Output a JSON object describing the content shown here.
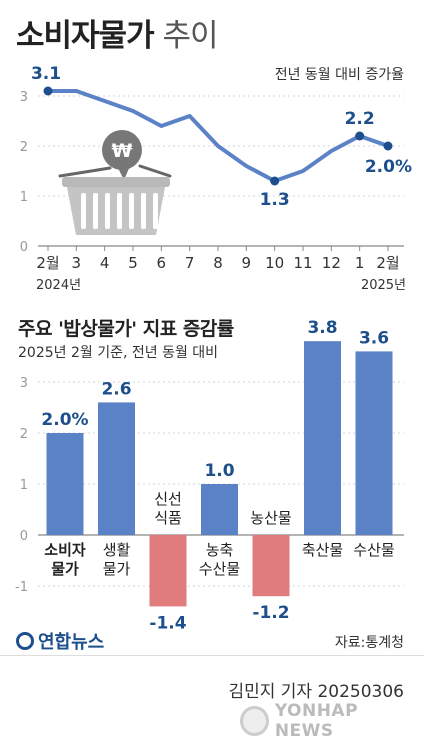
{
  "header": {
    "title_bold": "소비자물가",
    "title_light": "추이"
  },
  "chart_data": [
    {
      "type": "line",
      "subtitle": "전년 동월 대비 증가율",
      "x": [
        "2월",
        "3",
        "4",
        "5",
        "6",
        "7",
        "8",
        "9",
        "10",
        "11",
        "12",
        "1",
        "2월"
      ],
      "year_labels": [
        "2024년",
        "2025년"
      ],
      "values": [
        3.1,
        3.1,
        2.9,
        2.7,
        2.4,
        2.6,
        2.0,
        1.6,
        1.3,
        1.5,
        1.9,
        2.2,
        2.0
      ],
      "data_labels": [
        {
          "index": 0,
          "text": "3.1"
        },
        {
          "index": 8,
          "text": "1.3"
        },
        {
          "index": 11,
          "text": "2.2"
        },
        {
          "index": 12,
          "text": "2.0%"
        }
      ],
      "yticks": [
        0,
        1,
        2,
        3
      ],
      "ylim": [
        0,
        3.4
      ],
      "grid": true,
      "line_color": "#5b82c7",
      "label_color": "#1d4f8c",
      "icon": "shopping-basket-won-icon"
    },
    {
      "type": "bar",
      "title": "주요 '밥상물가' 지표 증감률",
      "subtitle": "2025년 2월 기준, 전년 동월 대비",
      "categories": [
        [
          "소비자",
          "물가"
        ],
        [
          "생활",
          "물가"
        ],
        [
          "신선",
          "식품"
        ],
        [
          "농축",
          "수산물"
        ],
        [
          "농산물"
        ],
        [
          "축산물"
        ],
        [
          "수산물"
        ]
      ],
      "values": [
        2.0,
        2.6,
        -1.4,
        1.0,
        -1.2,
        3.8,
        3.6
      ],
      "value_labels": [
        "2.0%",
        "2.6",
        "-1.4",
        "1.0",
        "-1.2",
        "3.8",
        "3.6"
      ],
      "yticks": [
        -1,
        0,
        1,
        2,
        3
      ],
      "ylim": [
        -1.5,
        4.0
      ],
      "grid": true,
      "positive_color": "#5b82c7",
      "negative_color": "#e07b7e",
      "label_color": "#1d4f8c",
      "bold_category_index": 0
    }
  ],
  "footer": {
    "logo": "연합뉴스",
    "source": "자료:통계청",
    "byline": "김민지 기자  20250306",
    "watermark": "YONHAP NEWS"
  }
}
